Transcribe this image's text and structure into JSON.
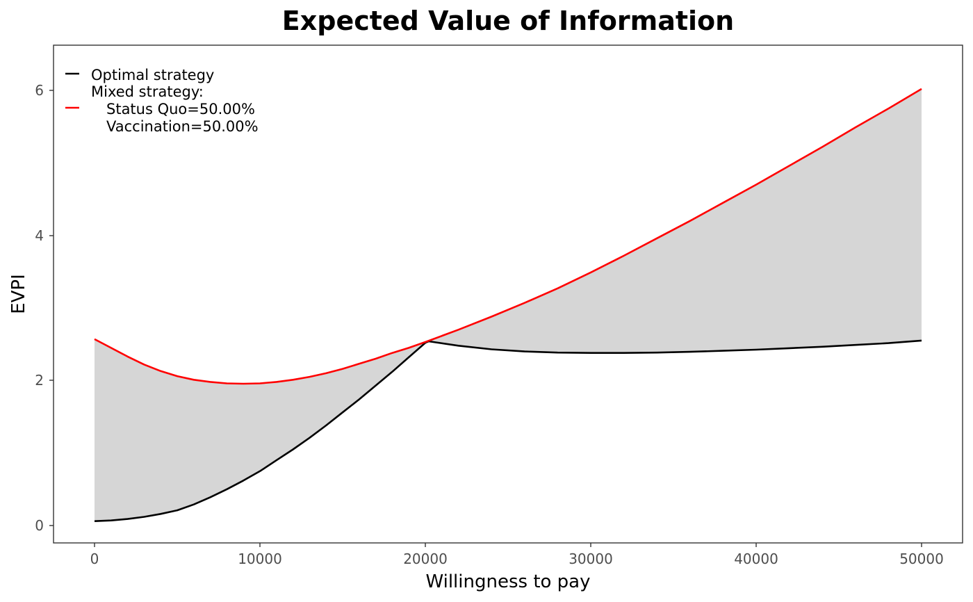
{
  "chart_data": {
    "type": "line",
    "title": "Expected Value of Information",
    "xlabel": "Willingness to pay",
    "ylabel": "EVPI",
    "xlim": [
      -2500,
      52500
    ],
    "ylim": [
      -0.25,
      6.6
    ],
    "x_ticks": [
      0,
      10000,
      20000,
      30000,
      40000,
      50000
    ],
    "x_tick_labels": [
      "0",
      "10000",
      "20000",
      "30000",
      "40000",
      "50000"
    ],
    "y_ticks": [
      0,
      2,
      4,
      6
    ],
    "y_tick_labels": [
      "0",
      "2",
      "4",
      "6"
    ],
    "grid": false,
    "legend_position": "top-left",
    "shaded_region": {
      "between": [
        "Optimal strategy",
        "Mixed strategy"
      ],
      "color": "#d6d6d6"
    },
    "series": [
      {
        "name": "Optimal strategy",
        "color": "#000000",
        "x": [
          0,
          1000,
          2000,
          3000,
          4000,
          5000,
          6000,
          7000,
          8000,
          9000,
          10000,
          11000,
          12000,
          13000,
          14000,
          15000,
          16000,
          17000,
          18000,
          19000,
          20000,
          20200,
          22000,
          24000,
          26000,
          28000,
          30000,
          32000,
          34000,
          36000,
          38000,
          40000,
          42000,
          44000,
          46000,
          48000,
          50000
        ],
        "y": [
          0.06,
          0.07,
          0.09,
          0.12,
          0.16,
          0.21,
          0.29,
          0.39,
          0.5,
          0.62,
          0.75,
          0.9,
          1.05,
          1.21,
          1.38,
          1.56,
          1.74,
          1.93,
          2.12,
          2.32,
          2.52,
          2.54,
          2.48,
          2.43,
          2.4,
          2.385,
          2.38,
          2.38,
          2.385,
          2.395,
          2.41,
          2.425,
          2.445,
          2.465,
          2.49,
          2.515,
          2.55
        ]
      },
      {
        "name": "Mixed strategy:",
        "legend_lines": [
          "Mixed strategy:",
          "Status Quo=50.00%",
          "Vaccination=50.00%"
        ],
        "color": "#ff0000",
        "x": [
          0,
          1000,
          2000,
          3000,
          4000,
          5000,
          6000,
          7000,
          8000,
          9000,
          10000,
          11000,
          12000,
          13000,
          14000,
          15000,
          16000,
          17000,
          18000,
          19000,
          20000,
          22000,
          24000,
          26000,
          28000,
          30000,
          32000,
          34000,
          36000,
          38000,
          40000,
          42000,
          44000,
          46000,
          48000,
          50000
        ],
        "y": [
          2.57,
          2.45,
          2.33,
          2.22,
          2.13,
          2.06,
          2.01,
          1.98,
          1.96,
          1.955,
          1.96,
          1.98,
          2.01,
          2.05,
          2.1,
          2.16,
          2.23,
          2.3,
          2.38,
          2.45,
          2.53,
          2.7,
          2.88,
          3.07,
          3.27,
          3.49,
          3.72,
          3.96,
          4.2,
          4.45,
          4.7,
          4.96,
          5.22,
          5.49,
          5.75,
          6.02
        ]
      }
    ]
  }
}
